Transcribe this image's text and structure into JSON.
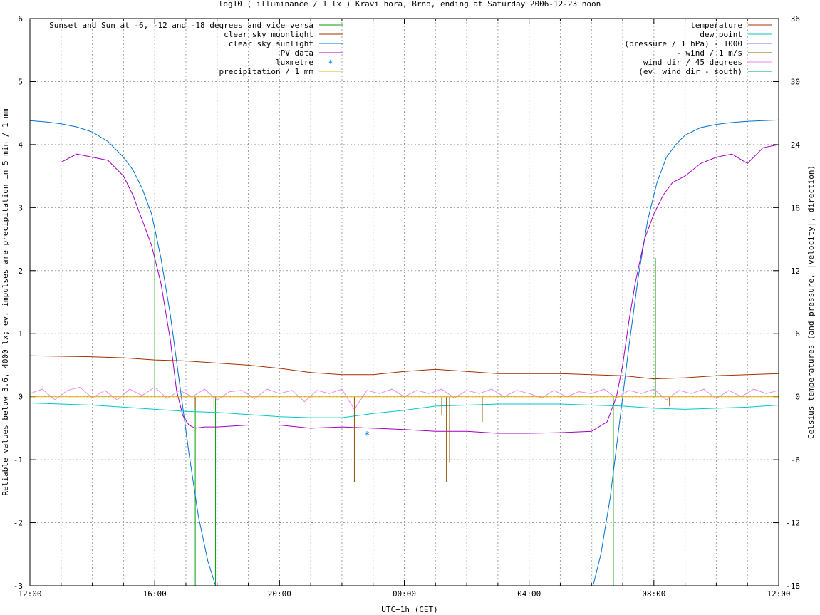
{
  "chart_data": {
    "type": "line",
    "title": "log10 ( illuminance / 1 lx ) Kravi hora, Brno, ending at Saturday 2006-12-23 noon",
    "xlabel": "UTC+1h (CET)",
    "ylabel_left": "Reliable values below 3.6, 4000 lx; ev. impulses are precipitation in 5 min / 1 mm",
    "ylabel_right": "Celsius temperatures (and pressure, |velocity|, direction)",
    "x_unit": "hours since 12:00",
    "xlim": [
      0,
      24
    ],
    "ylim_left": [
      -3,
      6
    ],
    "ylim_right": [
      -18,
      36
    ],
    "grid": true,
    "x_ticks": [
      {
        "v": 0,
        "label": "12:00"
      },
      {
        "v": 4,
        "label": "16:00"
      },
      {
        "v": 8,
        "label": "20:00"
      },
      {
        "v": 12,
        "label": "00:00"
      },
      {
        "v": 16,
        "label": "04:00"
      },
      {
        "v": 20,
        "label": "08:00"
      },
      {
        "v": 24,
        "label": "12:00"
      }
    ],
    "y_left_ticks": [
      {
        "v": -3,
        "label": "-3"
      },
      {
        "v": -2,
        "label": "-2"
      },
      {
        "v": -1,
        "label": "-1"
      },
      {
        "v": 0,
        "label": "0"
      },
      {
        "v": 1,
        "label": "1"
      },
      {
        "v": 2,
        "label": "2"
      },
      {
        "v": 3,
        "label": "3"
      },
      {
        "v": 4,
        "label": "4"
      },
      {
        "v": 5,
        "label": "5"
      },
      {
        "v": 6,
        "label": "6"
      }
    ],
    "y_right_ticks": [
      {
        "v": -18,
        "label": "-18"
      },
      {
        "v": -12,
        "label": "-12"
      },
      {
        "v": -6,
        "label": "-6"
      },
      {
        "v": 0,
        "label": "0"
      },
      {
        "v": 6,
        "label": "6"
      },
      {
        "v": 12,
        "label": "12"
      },
      {
        "v": 18,
        "label": "18"
      },
      {
        "v": 24,
        "label": "24"
      },
      {
        "v": 30,
        "label": "30"
      },
      {
        "v": 36,
        "label": "36"
      }
    ],
    "legend_left": [
      {
        "name": "Sunset and Sun at -6, -12 and -18 degrees and vice versa",
        "color": "#00a000",
        "style": "line"
      },
      {
        "name": "clear sky moonlight",
        "color": "#a03000",
        "style": "line"
      },
      {
        "name": "clear sky sunlight",
        "color": "#0070d0",
        "style": "line"
      },
      {
        "name": "PV data",
        "color": "#a000c0",
        "style": "line"
      },
      {
        "name": "luxmetre",
        "color": "#0080ff",
        "style": "point"
      },
      {
        "name": "precipitation / 1 mm",
        "color": "#e0b000",
        "style": "line"
      }
    ],
    "legend_right": [
      {
        "name": "temperature",
        "color": "#a03000",
        "style": "line"
      },
      {
        "name": "dew point",
        "color": "#00c8c8",
        "style": "line"
      },
      {
        "name": "(pressure / 1 hPa) - 1000",
        "color": "#9070e0",
        "style": "line"
      },
      {
        "name": "- wind / 1 m/s",
        "color": "#905000",
        "style": "line"
      },
      {
        "name": "wind dir / 45 degrees",
        "color": "#ee88ee",
        "style": "line"
      },
      {
        "name": "(ev. wind dir - south)",
        "color": "#00a080",
        "style": "line"
      }
    ],
    "sun_events": {
      "color": "#00a000",
      "x": [
        4.0,
        5.3,
        5.95,
        18.05,
        18.7,
        20.05
      ],
      "y": [
        2.6,
        -3.0,
        -3.0,
        -3.0,
        -3.0,
        2.2
      ]
    },
    "series": [
      {
        "name": "clear sky sunlight",
        "axis": "left",
        "color": "#0070d0",
        "x": [
          0,
          0.5,
          1,
          1.5,
          2,
          2.5,
          3,
          3.3,
          3.6,
          3.9,
          4.2,
          4.5,
          4.8,
          5.1,
          5.4,
          5.7,
          5.95,
          18.05,
          18.3,
          18.6,
          18.9,
          19.2,
          19.5,
          19.8,
          20.1,
          20.4,
          20.7,
          21,
          21.5,
          22,
          22.5,
          23,
          23.5,
          24
        ],
        "y": [
          4.38,
          4.36,
          4.33,
          4.28,
          4.2,
          4.05,
          3.8,
          3.6,
          3.3,
          2.9,
          2.2,
          1.3,
          0.2,
          -0.9,
          -1.9,
          -2.6,
          -3.0,
          -3.0,
          -2.5,
          -1.6,
          -0.4,
          0.8,
          1.9,
          2.8,
          3.4,
          3.8,
          4.0,
          4.15,
          4.27,
          4.32,
          4.35,
          4.37,
          4.38,
          4.39
        ]
      },
      {
        "name": "PV data",
        "axis": "left",
        "color": "#a000c0",
        "x": [
          1,
          1.5,
          2,
          2.5,
          3,
          3.3,
          3.6,
          3.9,
          4.2,
          4.5,
          4.7,
          4.9,
          5.1,
          5.3,
          5.6,
          6,
          7,
          8,
          9,
          10,
          11,
          12,
          13,
          14,
          15,
          16,
          17,
          18,
          18.5,
          18.8,
          19,
          19.2,
          19.4,
          19.7,
          20,
          20.3,
          20.6,
          21,
          21.5,
          22,
          22.5,
          23,
          23.5,
          24
        ],
        "y": [
          3.72,
          3.85,
          3.8,
          3.75,
          3.5,
          3.2,
          2.8,
          2.4,
          1.8,
          0.9,
          0.1,
          -0.3,
          -0.45,
          -0.5,
          -0.48,
          -0.48,
          -0.45,
          -0.45,
          -0.5,
          -0.48,
          -0.5,
          -0.52,
          -0.55,
          -0.55,
          -0.58,
          -0.58,
          -0.57,
          -0.55,
          -0.4,
          0.0,
          0.5,
          1.2,
          1.8,
          2.5,
          2.9,
          3.2,
          3.4,
          3.5,
          3.7,
          3.8,
          3.85,
          3.7,
          3.95,
          4.0
        ]
      },
      {
        "name": "temperature",
        "axis": "right",
        "color": "#a03000",
        "x": [
          0,
          2,
          3,
          4,
          5,
          6,
          7,
          8,
          9,
          10,
          11,
          12,
          13,
          14,
          15,
          16,
          17,
          18,
          19,
          20,
          21,
          22,
          23,
          24
        ],
        "y": [
          3.9,
          3.8,
          3.7,
          3.5,
          3.4,
          3.2,
          3.0,
          2.7,
          2.3,
          2.1,
          2.1,
          2.4,
          2.6,
          2.4,
          2.2,
          2.2,
          2.2,
          2.1,
          2.0,
          1.7,
          1.8,
          2.0,
          2.1,
          2.2
        ]
      },
      {
        "name": "dew point",
        "axis": "right",
        "color": "#00c8c8",
        "x": [
          0,
          2,
          3,
          4,
          5,
          6,
          7,
          8,
          9,
          10,
          11,
          12,
          13,
          14,
          15,
          16,
          17,
          18,
          19,
          20,
          21,
          22,
          23,
          24
        ],
        "y": [
          -0.6,
          -0.8,
          -1.0,
          -1.2,
          -1.4,
          -1.5,
          -1.7,
          -1.9,
          -2.0,
          -2.0,
          -1.6,
          -1.3,
          -0.9,
          -0.8,
          -0.7,
          -0.7,
          -0.7,
          -0.8,
          -0.9,
          -1.1,
          -1.2,
          -1.1,
          -1.0,
          -0.8
        ]
      },
      {
        "name": "wind dir / 45 degrees",
        "axis": "left",
        "color": "#ee88ee",
        "x": [
          0,
          0.4,
          0.8,
          1.2,
          1.6,
          2,
          2.4,
          2.8,
          3.2,
          3.6,
          4,
          4.4,
          4.8,
          5.2,
          5.6,
          6,
          6.4,
          6.8,
          7.2,
          7.6,
          8,
          8.4,
          8.8,
          9.2,
          9.6,
          10,
          10.4,
          10.8,
          11.2,
          11.6,
          12,
          12.4,
          12.8,
          13.2,
          13.6,
          14,
          14.4,
          14.8,
          15.2,
          15.6,
          16,
          16.4,
          16.8,
          17.2,
          17.6,
          18,
          18.4,
          18.8,
          19.2,
          19.6,
          20,
          20.4,
          20.8,
          21.2,
          21.6,
          22,
          22.4,
          22.8,
          23.2,
          23.6,
          24
        ],
        "y": [
          0.05,
          0.12,
          -0.05,
          0.1,
          0.15,
          -0.02,
          0.1,
          -0.05,
          0.12,
          0.02,
          0.15,
          -0.03,
          0.1,
          0.0,
          0.12,
          -0.05,
          0.08,
          0.1,
          -0.03,
          0.12,
          0.05,
          0.1,
          -0.08,
          0.1,
          0.05,
          0.12,
          -0.2,
          0.1,
          0.05,
          0.12,
          0.0,
          0.1,
          0.05,
          0.12,
          -0.02,
          0.1,
          0.05,
          0.12,
          0.0,
          0.1,
          0.05,
          -0.02,
          0.1,
          0.0,
          0.08,
          0.05,
          0.12,
          -0.02,
          0.1,
          0.05,
          0.12,
          -0.05,
          0.1,
          0.05,
          0.12,
          -0.03,
          0.1,
          0.0,
          0.12,
          0.05,
          0.1
        ]
      },
      {
        "name": "- wind / 1 m/s",
        "axis": "left",
        "color": "#905000",
        "x": [
          5.3,
          5.9,
          10.4,
          13.2,
          13.35,
          13.45,
          14.5,
          20.5
        ],
        "y": [
          -0.2,
          -0.2,
          -1.35,
          -0.3,
          -1.35,
          -1.05,
          -0.4,
          -0.15
        ]
      },
      {
        "name": "luxmetre",
        "axis": "left",
        "color": "#0080ff",
        "x": [
          10.8
        ],
        "y": [
          -0.6
        ]
      },
      {
        "name": "precipitation / 1 mm",
        "axis": "left",
        "color": "#e0b000",
        "x": [
          0,
          24
        ],
        "y": [
          0,
          0
        ]
      }
    ]
  }
}
